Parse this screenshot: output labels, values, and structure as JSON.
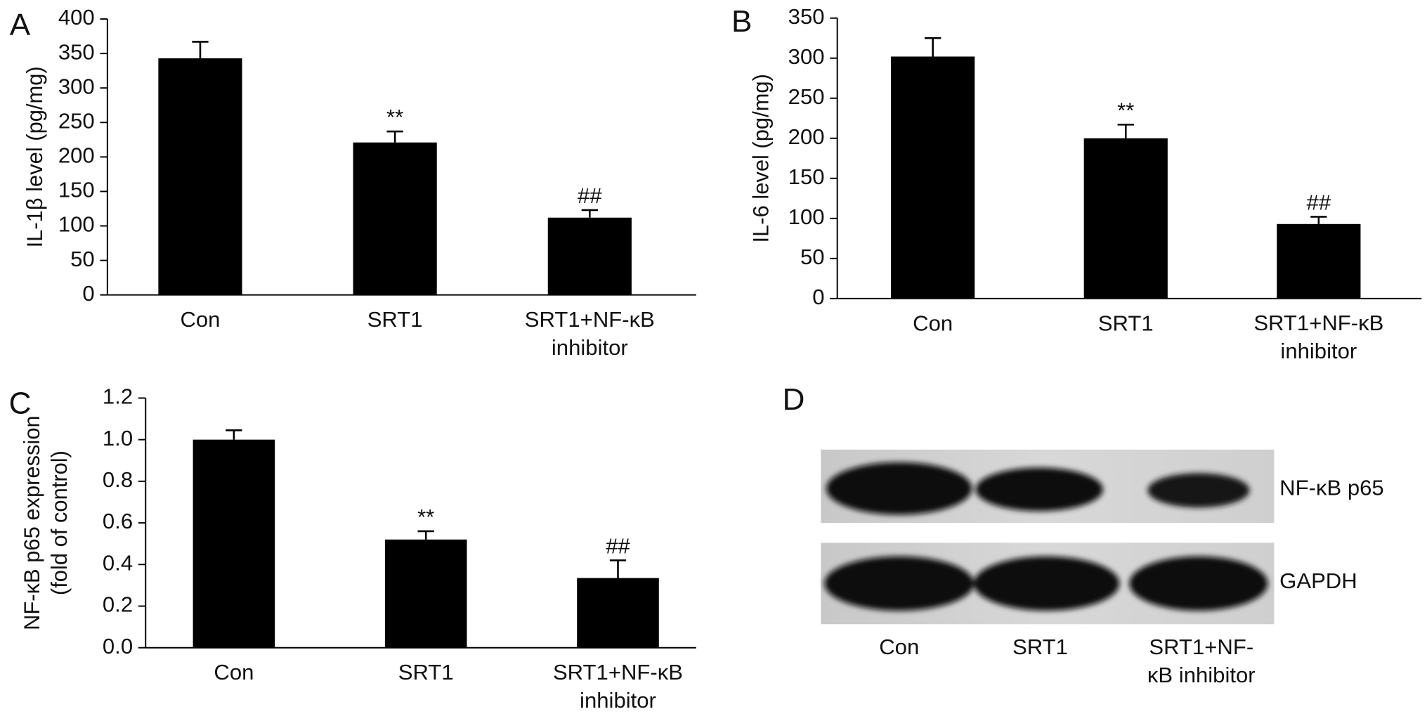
{
  "chart_data": [
    {
      "type": "bar",
      "panel": "A",
      "ylabel": [
        "IL-1β level (pg/mg)"
      ],
      "categories": [
        "Con",
        "SRT1",
        "SRT1+NF-κB inhibitor"
      ],
      "values": [
        343,
        221,
        112
      ],
      "errors": [
        24,
        16,
        11
      ],
      "annotations": [
        null,
        "**",
        "##"
      ],
      "color": "#000000",
      "ylim": [
        0,
        400
      ],
      "yticks": [
        0,
        50,
        100,
        150,
        200,
        250,
        300,
        350,
        400
      ]
    },
    {
      "type": "bar",
      "panel": "B",
      "ylabel": [
        "IL-6 level (pg/mg)"
      ],
      "categories": [
        "Con",
        "SRT1",
        "SRT1+NF-κB inhibitor"
      ],
      "values": [
        302,
        200,
        93
      ],
      "errors": [
        23,
        17,
        9
      ],
      "annotations": [
        null,
        "**",
        "##"
      ],
      "color": "#000000",
      "ylim": [
        0,
        350
      ],
      "yticks": [
        0,
        50,
        100,
        150,
        200,
        250,
        300,
        350
      ]
    },
    {
      "type": "bar",
      "panel": "C",
      "ylabel": [
        "NF-κB p65 expression",
        "(fold of control)"
      ],
      "categories": [
        "Con",
        "SRT1",
        "SRT1+NF-κB inhibitor"
      ],
      "values": [
        1.0,
        0.52,
        0.335
      ],
      "errors": [
        0.045,
        0.04,
        0.085
      ],
      "annotations": [
        null,
        "**",
        "##"
      ],
      "color": "#000000",
      "ylim": [
        0,
        1.2
      ],
      "yticks": [
        {
          "value": 0,
          "label": "0.0"
        },
        0.2,
        0.4,
        0.6,
        0.8,
        {
          "value": 1,
          "label": "1.0"
        },
        1.2
      ]
    }
  ],
  "blot": {
    "panel": "D",
    "bands": [
      "NF-κB p65",
      "GAPDH"
    ],
    "lanes": [
      [
        "Con"
      ],
      [
        "SRT1"
      ],
      [
        "SRT1+NF-",
        "κB inhibitor"
      ]
    ]
  }
}
